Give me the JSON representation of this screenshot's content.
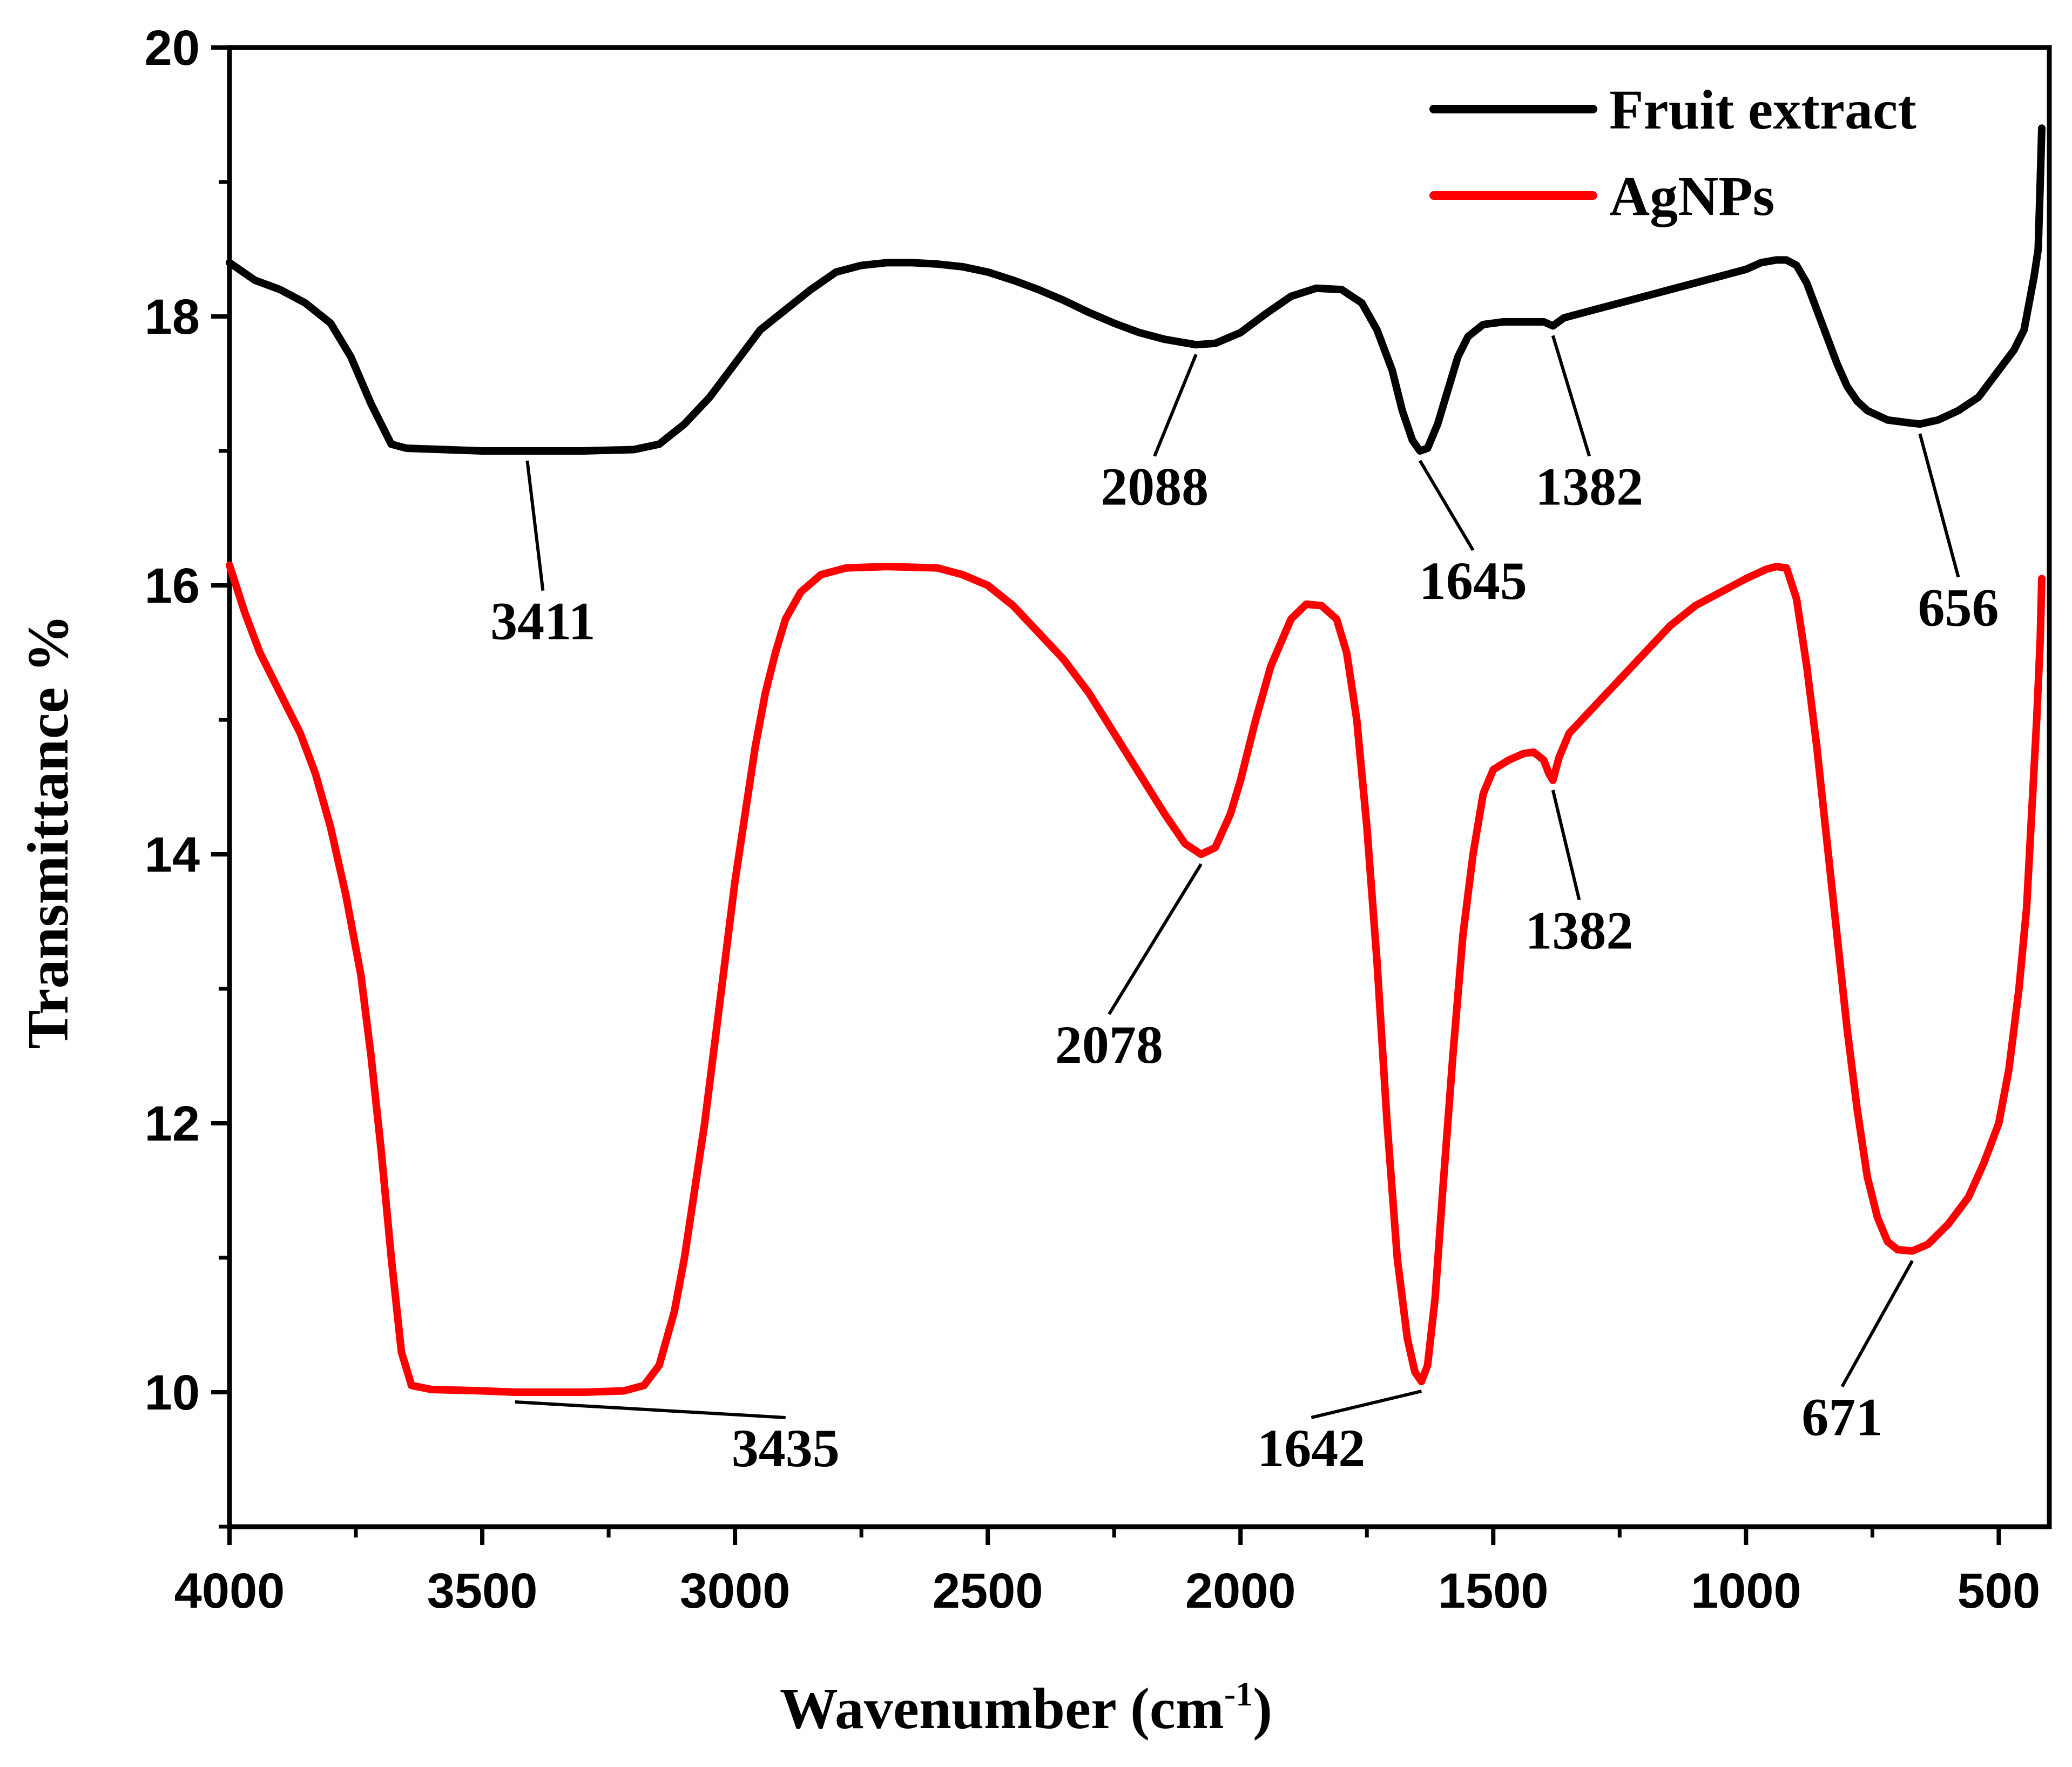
{
  "chart_data": {
    "type": "line",
    "xlabel": "Wavenumber (cm",
    "xlabel_sup": "-1",
    "xlabel_close": ")",
    "ylabel": "Transmittance %",
    "xlim": [
      4000,
      400
    ],
    "ylim": [
      9,
      20
    ],
    "xticks": [
      4000,
      3500,
      3000,
      2500,
      2000,
      1500,
      1000,
      500
    ],
    "xtick_labels": [
      "4000",
      "3500",
      "3000",
      "2500",
      "2000",
      "1500",
      "1000",
      "500"
    ],
    "yticks": [
      10,
      12,
      14,
      16,
      18,
      20
    ],
    "ytick_labels": [
      "10",
      "12",
      "14",
      "16",
      "18",
      "20"
    ],
    "legend_position": "top-right",
    "series": [
      {
        "name": "Fruit extract",
        "color": "#000000",
        "points": [
          [
            4000,
            18.4
          ],
          [
            3950,
            18.27
          ],
          [
            3900,
            18.2
          ],
          [
            3850,
            18.1
          ],
          [
            3800,
            17.95
          ],
          [
            3760,
            17.7
          ],
          [
            3720,
            17.35
          ],
          [
            3680,
            17.05
          ],
          [
            3650,
            17.02
          ],
          [
            3500,
            17.0
          ],
          [
            3411,
            17.0
          ],
          [
            3300,
            17.0
          ],
          [
            3200,
            17.01
          ],
          [
            3150,
            17.05
          ],
          [
            3100,
            17.2
          ],
          [
            3050,
            17.4
          ],
          [
            3000,
            17.65
          ],
          [
            2950,
            17.9
          ],
          [
            2900,
            18.05
          ],
          [
            2850,
            18.2
          ],
          [
            2800,
            18.33
          ],
          [
            2750,
            18.38
          ],
          [
            2700,
            18.4
          ],
          [
            2650,
            18.4
          ],
          [
            2600,
            18.39
          ],
          [
            2550,
            18.37
          ],
          [
            2500,
            18.33
          ],
          [
            2450,
            18.27
          ],
          [
            2400,
            18.2
          ],
          [
            2350,
            18.12
          ],
          [
            2300,
            18.03
          ],
          [
            2250,
            17.95
          ],
          [
            2200,
            17.88
          ],
          [
            2150,
            17.83
          ],
          [
            2088,
            17.79
          ],
          [
            2050,
            17.8
          ],
          [
            2000,
            17.88
          ],
          [
            1950,
            18.02
          ],
          [
            1900,
            18.15
          ],
          [
            1850,
            18.21
          ],
          [
            1800,
            18.2
          ],
          [
            1760,
            18.1
          ],
          [
            1730,
            17.9
          ],
          [
            1700,
            17.6
          ],
          [
            1680,
            17.3
          ],
          [
            1660,
            17.08
          ],
          [
            1645,
            17.0
          ],
          [
            1630,
            17.02
          ],
          [
            1610,
            17.2
          ],
          [
            1590,
            17.45
          ],
          [
            1570,
            17.7
          ],
          [
            1550,
            17.85
          ],
          [
            1520,
            17.94
          ],
          [
            1480,
            17.96
          ],
          [
            1440,
            17.96
          ],
          [
            1400,
            17.96
          ],
          [
            1382,
            17.93
          ],
          [
            1360,
            17.99
          ],
          [
            1300,
            18.05
          ],
          [
            1250,
            18.1
          ],
          [
            1200,
            18.15
          ],
          [
            1150,
            18.2
          ],
          [
            1100,
            18.25
          ],
          [
            1050,
            18.3
          ],
          [
            1000,
            18.35
          ],
          [
            970,
            18.4
          ],
          [
            940,
            18.42
          ],
          [
            920,
            18.42
          ],
          [
            900,
            18.38
          ],
          [
            880,
            18.25
          ],
          [
            860,
            18.05
          ],
          [
            840,
            17.85
          ],
          [
            820,
            17.65
          ],
          [
            800,
            17.48
          ],
          [
            780,
            17.37
          ],
          [
            760,
            17.3
          ],
          [
            720,
            17.23
          ],
          [
            680,
            17.21
          ],
          [
            656,
            17.2
          ],
          [
            620,
            17.23
          ],
          [
            580,
            17.3
          ],
          [
            540,
            17.4
          ],
          [
            500,
            17.6
          ],
          [
            470,
            17.75
          ],
          [
            450,
            17.9
          ],
          [
            440,
            18.1
          ],
          [
            430,
            18.3
          ],
          [
            422,
            18.5
          ],
          [
            418,
            19.0
          ],
          [
            415,
            19.4
          ]
        ]
      },
      {
        "name": "AgNPs",
        "color": "#ff0000",
        "points": [
          [
            4000,
            16.15
          ],
          [
            3970,
            15.8
          ],
          [
            3940,
            15.5
          ],
          [
            3900,
            15.2
          ],
          [
            3860,
            14.9
          ],
          [
            3830,
            14.6
          ],
          [
            3800,
            14.2
          ],
          [
            3770,
            13.7
          ],
          [
            3740,
            13.1
          ],
          [
            3720,
            12.5
          ],
          [
            3700,
            11.8
          ],
          [
            3680,
            11.0
          ],
          [
            3660,
            10.3
          ],
          [
            3640,
            10.05
          ],
          [
            3600,
            10.02
          ],
          [
            3500,
            10.01
          ],
          [
            3435,
            10.0
          ],
          [
            3300,
            10.0
          ],
          [
            3220,
            10.01
          ],
          [
            3180,
            10.05
          ],
          [
            3150,
            10.2
          ],
          [
            3120,
            10.6
          ],
          [
            3100,
            11.0
          ],
          [
            3080,
            11.5
          ],
          [
            3060,
            12.0
          ],
          [
            3040,
            12.6
          ],
          [
            3020,
            13.2
          ],
          [
            3000,
            13.8
          ],
          [
            2980,
            14.3
          ],
          [
            2960,
            14.8
          ],
          [
            2940,
            15.2
          ],
          [
            2920,
            15.5
          ],
          [
            2900,
            15.75
          ],
          [
            2870,
            15.95
          ],
          [
            2830,
            16.08
          ],
          [
            2780,
            16.13
          ],
          [
            2700,
            16.14
          ],
          [
            2600,
            16.13
          ],
          [
            2550,
            16.08
          ],
          [
            2500,
            16.0
          ],
          [
            2450,
            15.85
          ],
          [
            2400,
            15.65
          ],
          [
            2350,
            15.45
          ],
          [
            2300,
            15.2
          ],
          [
            2250,
            14.9
          ],
          [
            2200,
            14.6
          ],
          [
            2150,
            14.3
          ],
          [
            2110,
            14.08
          ],
          [
            2078,
            14.0
          ],
          [
            2050,
            14.05
          ],
          [
            2020,
            14.3
          ],
          [
            2000,
            14.55
          ],
          [
            1970,
            15.0
          ],
          [
            1940,
            15.4
          ],
          [
            1900,
            15.75
          ],
          [
            1870,
            15.86
          ],
          [
            1840,
            15.85
          ],
          [
            1810,
            15.75
          ],
          [
            1790,
            15.5
          ],
          [
            1770,
            15.0
          ],
          [
            1750,
            14.2
          ],
          [
            1730,
            13.2
          ],
          [
            1710,
            12.0
          ],
          [
            1690,
            11.0
          ],
          [
            1670,
            10.4
          ],
          [
            1655,
            10.15
          ],
          [
            1642,
            10.08
          ],
          [
            1630,
            10.2
          ],
          [
            1615,
            10.7
          ],
          [
            1600,
            11.5
          ],
          [
            1580,
            12.5
          ],
          [
            1560,
            13.4
          ],
          [
            1540,
            14.0
          ],
          [
            1520,
            14.45
          ],
          [
            1500,
            14.63
          ],
          [
            1470,
            14.7
          ],
          [
            1440,
            14.75
          ],
          [
            1420,
            14.76
          ],
          [
            1400,
            14.7
          ],
          [
            1390,
            14.6
          ],
          [
            1382,
            14.55
          ],
          [
            1370,
            14.72
          ],
          [
            1350,
            14.9
          ],
          [
            1300,
            15.1
          ],
          [
            1250,
            15.3
          ],
          [
            1200,
            15.5
          ],
          [
            1150,
            15.7
          ],
          [
            1100,
            15.85
          ],
          [
            1050,
            15.95
          ],
          [
            1000,
            16.05
          ],
          [
            960,
            16.12
          ],
          [
            940,
            16.14
          ],
          [
            920,
            16.13
          ],
          [
            900,
            15.9
          ],
          [
            880,
            15.4
          ],
          [
            860,
            14.8
          ],
          [
            840,
            14.1
          ],
          [
            820,
            13.4
          ],
          [
            800,
            12.7
          ],
          [
            780,
            12.1
          ],
          [
            760,
            11.6
          ],
          [
            740,
            11.3
          ],
          [
            720,
            11.12
          ],
          [
            700,
            11.06
          ],
          [
            671,
            11.05
          ],
          [
            640,
            11.1
          ],
          [
            600,
            11.25
          ],
          [
            560,
            11.45
          ],
          [
            530,
            11.7
          ],
          [
            500,
            12.0
          ],
          [
            480,
            12.4
          ],
          [
            460,
            13.0
          ],
          [
            445,
            13.6
          ],
          [
            435,
            14.3
          ],
          [
            425,
            15.0
          ],
          [
            418,
            15.6
          ],
          [
            415,
            16.05
          ]
        ]
      }
    ],
    "annotations": [
      {
        "label": "3411",
        "x": 3411,
        "y": 17.0,
        "text_x": 3380,
        "text_y": 15.6
      },
      {
        "label": "2088",
        "x": 2088,
        "y": 17.79,
        "text_x": 2170,
        "text_y": 16.6
      },
      {
        "label": "1645",
        "x": 1645,
        "y": 17.0,
        "text_x": 1540,
        "text_y": 15.9
      },
      {
        "label": "1382",
        "x": 1382,
        "y": 17.93,
        "text_x": 1310,
        "text_y": 16.6
      },
      {
        "label": "656",
        "x": 656,
        "y": 17.2,
        "text_x": 580,
        "text_y": 15.7
      },
      {
        "label": "3435",
        "x": 3435,
        "y": 10.0,
        "text_x": 2900,
        "text_y": 9.45
      },
      {
        "label": "2078",
        "x": 2078,
        "y": 14.0,
        "text_x": 2260,
        "text_y": 12.45
      },
      {
        "label": "1642",
        "x": 1642,
        "y": 10.08,
        "text_x": 1860,
        "text_y": 9.45
      },
      {
        "label": "1382",
        "x": 1382,
        "y": 14.55,
        "text_x": 1330,
        "text_y": 13.3
      },
      {
        "label": "671",
        "x": 671,
        "y": 11.05,
        "text_x": 810,
        "text_y": 9.68
      }
    ]
  }
}
